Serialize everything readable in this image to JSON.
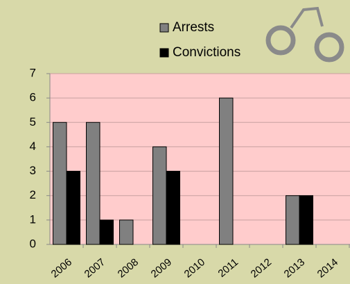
{
  "chart_data": {
    "type": "bar",
    "categories": [
      "2006",
      "2007",
      "2008",
      "2009",
      "2010",
      "2011",
      "2012",
      "2013",
      "2014"
    ],
    "series": [
      {
        "name": "Arrests",
        "color": "#808080",
        "values": [
          5,
          5,
          1,
          4,
          0,
          6,
          0,
          2,
          0
        ]
      },
      {
        "name": "Convictions",
        "color": "#000000",
        "values": [
          3,
          1,
          0,
          3,
          0,
          0,
          0,
          2,
          0
        ]
      }
    ],
    "ylim": [
      0,
      7
    ],
    "yticks": [
      0,
      1,
      2,
      3,
      4,
      5,
      6,
      7
    ],
    "grid": true
  }
}
